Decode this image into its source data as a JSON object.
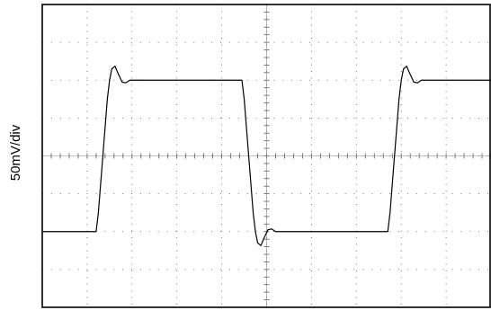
{
  "chart_data": {
    "type": "line",
    "title": "",
    "xlabel": "",
    "ylabel": "50mV/div",
    "grid": true,
    "x_divisions": 10,
    "y_divisions": 8,
    "xlim": [
      0,
      10
    ],
    "ylim": [
      -4,
      4
    ],
    "series": [
      {
        "name": "",
        "color": "#000000",
        "points": [
          [
            0,
            -2
          ],
          [
            1.2,
            -2
          ],
          [
            1.25,
            -1.5
          ],
          [
            1.35,
            0.0
          ],
          [
            1.45,
            1.5
          ],
          [
            1.5,
            2.0
          ],
          [
            1.55,
            2.3
          ],
          [
            1.62,
            2.37
          ],
          [
            1.7,
            2.15
          ],
          [
            1.78,
            1.95
          ],
          [
            1.86,
            1.93
          ],
          [
            1.95,
            2.0
          ],
          [
            2.05,
            2.0
          ],
          [
            4.45,
            2.0
          ],
          [
            4.5,
            1.5
          ],
          [
            4.6,
            0.0
          ],
          [
            4.7,
            -1.5
          ],
          [
            4.75,
            -2.0
          ],
          [
            4.8,
            -2.3
          ],
          [
            4.87,
            -2.37
          ],
          [
            4.95,
            -2.15
          ],
          [
            5.03,
            -1.95
          ],
          [
            5.11,
            -1.93
          ],
          [
            5.2,
            -2.0
          ],
          [
            7.7,
            -2.0
          ],
          [
            7.75,
            -1.5
          ],
          [
            7.85,
            0.0
          ],
          [
            7.95,
            1.5
          ],
          [
            8.0,
            2.0
          ],
          [
            8.05,
            2.3
          ],
          [
            8.12,
            2.37
          ],
          [
            8.2,
            2.15
          ],
          [
            8.28,
            1.95
          ],
          [
            8.36,
            1.93
          ],
          [
            8.45,
            2.0
          ],
          [
            10,
            2.0
          ]
        ]
      }
    ]
  }
}
